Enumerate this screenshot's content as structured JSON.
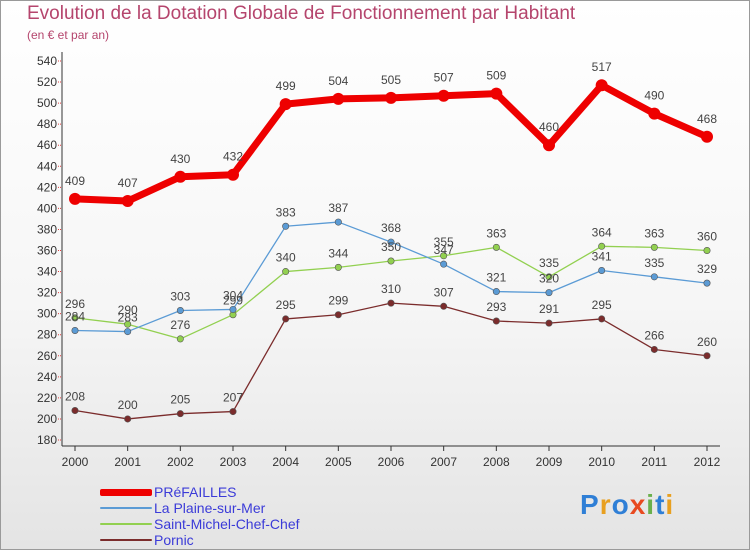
{
  "header": {
    "title": "Evolution de la Dotation Globale de Fonctionnement par Habitant",
    "subtitle": "(en € et par an)"
  },
  "brand": {
    "letters": [
      "P",
      "r",
      "o",
      "x",
      "i",
      "t",
      "i"
    ],
    "colors": [
      "#2f7fd6",
      "#e8a020",
      "#2f7fd6",
      "#e84a20",
      "#6ab04c",
      "#2f7fd6",
      "#e8a020"
    ]
  },
  "chart_data": {
    "type": "line",
    "title": "Evolution de la Dotation Globale de Fonctionnement par Habitant",
    "subtitle": "(en € et par an)",
    "x": [
      "2000",
      "2001",
      "2002",
      "2003",
      "2004",
      "2005",
      "2006",
      "2007",
      "2008",
      "2009",
      "2010",
      "2011",
      "2012"
    ],
    "ylim": [
      180,
      540
    ],
    "yticks": [
      180,
      200,
      220,
      240,
      260,
      280,
      300,
      320,
      340,
      360,
      380,
      400,
      420,
      440,
      460,
      480,
      500,
      520,
      540
    ],
    "grid": false,
    "legend": "bottom-left",
    "series": [
      {
        "name": "PRéFAILLES",
        "color": "#ee0000",
        "values": [
          409,
          407,
          430,
          432,
          499,
          504,
          505,
          507,
          509,
          460,
          517,
          490,
          468
        ]
      },
      {
        "name": "La Plaine-sur-Mer",
        "color": "#5b9bd5",
        "values": [
          284,
          283,
          303,
          304,
          383,
          387,
          368,
          347,
          321,
          320,
          341,
          335,
          329
        ]
      },
      {
        "name": "Saint-Michel-Chef-Chef",
        "color": "#92d050",
        "values": [
          296,
          290,
          276,
          299,
          340,
          344,
          350,
          355,
          363,
          335,
          364,
          363,
          360
        ]
      },
      {
        "name": "Pornic",
        "color": "#7b2c2c",
        "values": [
          208,
          200,
          205,
          207,
          295,
          299,
          310,
          307,
          293,
          291,
          295,
          266,
          260
        ]
      }
    ]
  }
}
